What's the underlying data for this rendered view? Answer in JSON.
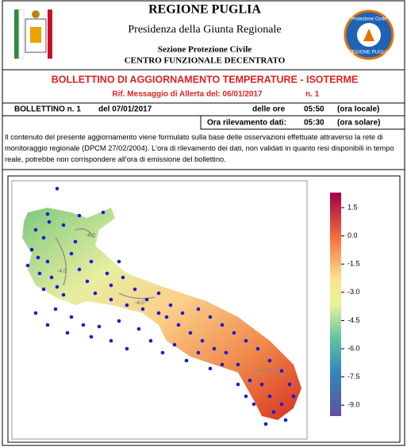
{
  "header": {
    "title": "REGIONE PUGLIA",
    "subtitle": "Presidenza della Giunta Regionale",
    "section": "Sezione Protezione Civile",
    "centre": "CENTRO FUNZIONALE DECENTRATO",
    "logo_right_top": "Protezione Civile",
    "logo_right_bottom": "REGIONE PUGLIA"
  },
  "bulletin": {
    "title": "BOLLETTINO DI AGGIORNAMENTO TEMPERATURE - ISOTERME",
    "reference": "Rif. Messaggio di Allerta del: 06/01/2017",
    "reference_number": "n. 1"
  },
  "table": {
    "rows": [
      [
        "BOLLETTINO n.  1",
        "del  07/01/2017",
        "delle ore",
        "05:50",
        "(ora locale)"
      ],
      [
        "Ora rilevamento dati:",
        "05:30",
        "(ora solare)"
      ]
    ]
  },
  "paragraph": "Il contenuto del presente aggiornamento viene formulato sulla base delle osservazioni effettuate attraverso la rete di monitoraggio regionale (DPCM 27/02/2004). L'ora di rilevamento dei dati, non validati in quanto resi disponibili in tempo reale, potrebbe non corrispondere all'ora di emissione del bollettino.",
  "map": {
    "contour_labels": [
      "-4.0",
      "-4.0",
      "-4.0"
    ],
    "colorbar_labels": [
      "1.5",
      "0.0",
      "-1.5",
      "-3.0",
      "-4.5",
      "-6.0",
      "-7.5",
      "-9.0"
    ]
  }
}
